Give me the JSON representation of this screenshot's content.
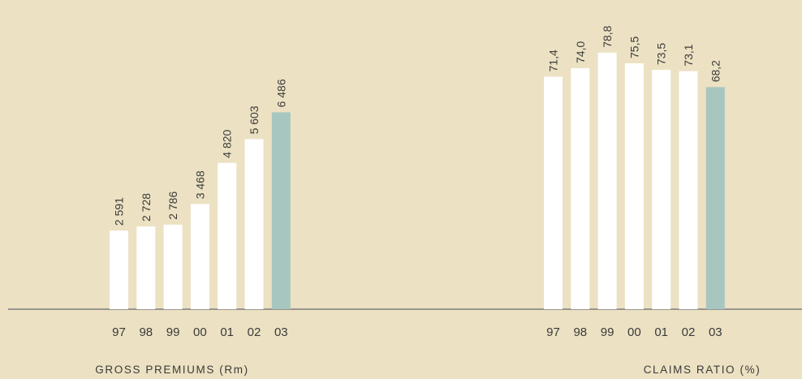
{
  "colors": {
    "background": "#ece1c2",
    "bar": "#ffffff",
    "highlight": "#a7c6c0",
    "axis": "#7d7d7d",
    "text": "#3a3a3a"
  },
  "chart_data": [
    {
      "type": "bar",
      "title": "GROSS PREMIUMS (Rm)",
      "categories": [
        "97",
        "98",
        "99",
        "00",
        "01",
        "02",
        "03"
      ],
      "values": [
        2591,
        2728,
        2786,
        3468,
        4820,
        5603,
        6486
      ],
      "labels": [
        "2 591",
        "2 728",
        "2 786",
        "3 468",
        "4 820",
        "5 603",
        "6 486"
      ],
      "highlight_index": 6,
      "ylim": [
        0,
        10000
      ],
      "grid": false,
      "legend": "none"
    },
    {
      "type": "bar",
      "title": "CLAIMS RATIO (%)",
      "categories": [
        "97",
        "98",
        "99",
        "00",
        "01",
        "02",
        "03"
      ],
      "values": [
        71.4,
        74.0,
        78.8,
        75.5,
        73.5,
        73.1,
        68.2
      ],
      "labels": [
        "71,4",
        "74,0",
        "78,8",
        "75,5",
        "73,5",
        "73,1",
        "68,2"
      ],
      "highlight_index": 6,
      "ylim": [
        0,
        93.2
      ],
      "grid": false,
      "legend": "none"
    }
  ]
}
